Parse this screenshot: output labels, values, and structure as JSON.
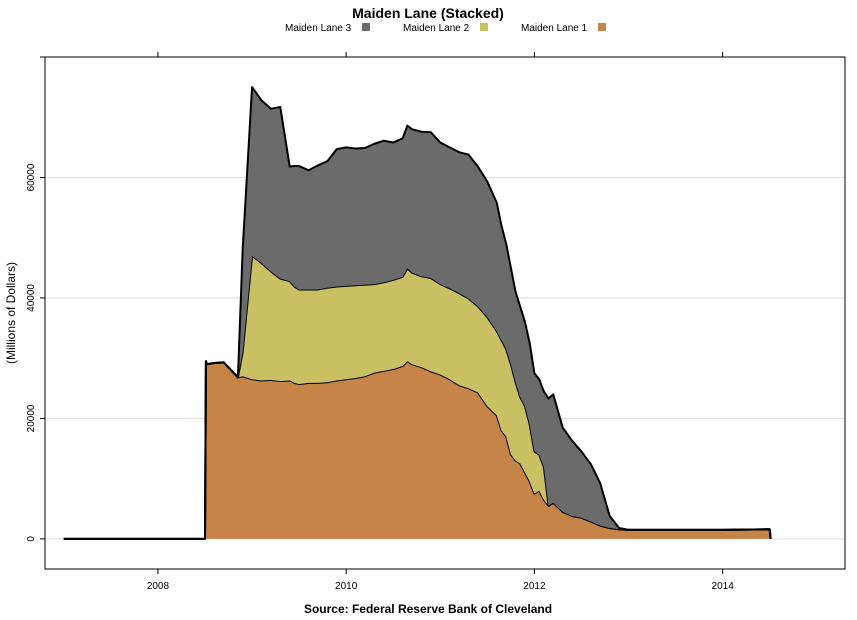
{
  "chart_data": {
    "type": "area",
    "stacked": true,
    "title": "Maiden Lane (Stacked)",
    "ylabel": "(Millions of Dollars)",
    "xlabel": "Source: Federal Reserve Bank of Cleveland",
    "xlim": [
      2006.8,
      2015.3
    ],
    "ylim": [
      -5000,
      80000
    ],
    "x_ticks": [
      2008,
      2010,
      2012,
      2014
    ],
    "y_ticks": [
      0,
      20000,
      40000,
      60000
    ],
    "grid": "horizontal",
    "legend_position": "top",
    "series": [
      {
        "name": "Maiden Lane 1",
        "color": "#c68447",
        "x": [
          2007.0,
          2008.5,
          2008.51,
          2008.52,
          2008.6,
          2008.7,
          2008.85,
          2008.9,
          2009.0,
          2009.1,
          2009.2,
          2009.3,
          2009.4,
          2009.45,
          2009.5,
          2009.6,
          2009.7,
          2009.8,
          2009.9,
          2010.0,
          2010.1,
          2010.2,
          2010.3,
          2010.4,
          2010.5,
          2010.6,
          2010.65,
          2010.7,
          2010.8,
          2010.9,
          2011.0,
          2011.1,
          2011.2,
          2011.3,
          2011.4,
          2011.5,
          2011.6,
          2011.65,
          2011.7,
          2011.75,
          2011.8,
          2011.85,
          2011.9,
          2011.95,
          2012.0,
          2012.05,
          2012.1,
          2012.15,
          2012.2,
          2012.3,
          2012.4,
          2012.5,
          2012.6,
          2012.7,
          2012.8,
          2012.9,
          2013.0,
          2013.5,
          2014.0,
          2014.5,
          2014.51
        ],
        "values": [
          0,
          0,
          29500,
          29000,
          29200,
          29300,
          26800,
          27000,
          26500,
          26300,
          26400,
          26200,
          26300,
          25900,
          25700,
          25900,
          25900,
          26000,
          26300,
          26500,
          26700,
          27000,
          27600,
          27900,
          28200,
          28700,
          29500,
          29000,
          28500,
          27800,
          27300,
          26500,
          25500,
          25000,
          24300,
          22000,
          20500,
          18000,
          17000,
          14000,
          13000,
          12500,
          11000,
          9500,
          7500,
          8000,
          6500,
          5500,
          6000,
          4500,
          3800,
          3500,
          2900,
          2200,
          1800,
          1600,
          1500,
          1500,
          1500,
          1600,
          0
        ]
      },
      {
        "name": "Maiden Lane 2",
        "color": "#c8c063",
        "x": [
          2007.0,
          2008.5,
          2008.51,
          2008.52,
          2008.6,
          2008.7,
          2008.85,
          2008.9,
          2009.0,
          2009.1,
          2009.2,
          2009.3,
          2009.4,
          2009.45,
          2009.5,
          2009.6,
          2009.7,
          2009.8,
          2009.9,
          2010.0,
          2010.1,
          2010.2,
          2010.3,
          2010.4,
          2010.5,
          2010.6,
          2010.65,
          2010.7,
          2010.8,
          2010.9,
          2011.0,
          2011.1,
          2011.2,
          2011.3,
          2011.4,
          2011.5,
          2011.6,
          2011.65,
          2011.7,
          2011.75,
          2011.8,
          2011.85,
          2011.9,
          2011.95,
          2012.0,
          2012.05,
          2012.1,
          2012.15,
          2012.2,
          2012.3,
          2012.4,
          2012.5,
          2012.6,
          2012.7,
          2012.8,
          2012.9,
          2013.0,
          2013.5,
          2014.0,
          2014.5,
          2014.51
        ],
        "values": [
          0,
          0,
          0,
          0,
          0,
          0,
          0,
          4000,
          20500,
          19500,
          18000,
          17000,
          16500,
          16000,
          15700,
          15500,
          15500,
          15700,
          15600,
          15500,
          15400,
          15200,
          14700,
          14700,
          14800,
          14800,
          15400,
          15200,
          15100,
          15500,
          15000,
          15100,
          15300,
          14900,
          14300,
          14800,
          14000,
          15000,
          14500,
          15000,
          13000,
          11000,
          11000,
          9500,
          7000,
          6000,
          5500,
          0,
          0,
          0,
          0,
          0,
          0,
          0,
          0,
          0,
          0,
          0,
          0,
          0,
          0
        ]
      },
      {
        "name": "Maiden Lane 3",
        "color": "#6b6b6b",
        "x": [
          2007.0,
          2008.5,
          2008.51,
          2008.52,
          2008.6,
          2008.7,
          2008.85,
          2008.9,
          2009.0,
          2009.1,
          2009.2,
          2009.3,
          2009.4,
          2009.45,
          2009.5,
          2009.6,
          2009.7,
          2009.8,
          2009.9,
          2010.0,
          2010.1,
          2010.2,
          2010.3,
          2010.4,
          2010.5,
          2010.6,
          2010.65,
          2010.7,
          2010.8,
          2010.9,
          2011.0,
          2011.1,
          2011.2,
          2011.3,
          2011.4,
          2011.5,
          2011.6,
          2011.65,
          2011.7,
          2011.75,
          2011.8,
          2011.85,
          2011.9,
          2011.95,
          2012.0,
          2012.05,
          2012.1,
          2012.15,
          2012.2,
          2012.3,
          2012.4,
          2012.5,
          2012.6,
          2012.7,
          2012.8,
          2012.9,
          2013.0,
          2013.5,
          2014.0,
          2014.5,
          2014.51
        ],
        "values": [
          0,
          0,
          0,
          0,
          0,
          0,
          0,
          17000,
          28000,
          27000,
          27000,
          28500,
          19000,
          20000,
          20500,
          19800,
          20600,
          21000,
          22800,
          23000,
          22700,
          22700,
          23300,
          23500,
          22800,
          23000,
          23700,
          23800,
          24000,
          24200,
          23500,
          23400,
          23400,
          23900,
          23200,
          22500,
          21300,
          19000,
          17500,
          16000,
          15000,
          15000,
          14000,
          13500,
          13000,
          12500,
          12500,
          17800,
          18000,
          14000,
          12500,
          11000,
          9500,
          7000,
          2000,
          200,
          0,
          0,
          0,
          0,
          0
        ]
      }
    ]
  }
}
